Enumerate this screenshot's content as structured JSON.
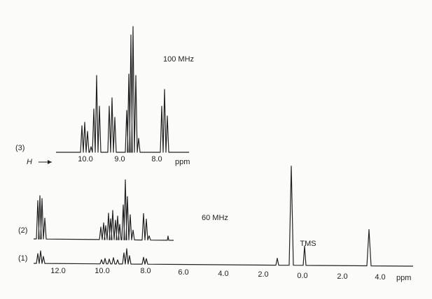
{
  "spectrum_3": {
    "label": "(3)",
    "frequency": "100 MHz",
    "field_symbol": "H",
    "axis": {
      "ticks": [
        "10.0",
        "9.0",
        "8.0"
      ],
      "unit": "ppm"
    }
  },
  "spectrum_2": {
    "label": "(2)",
    "frequency": "60 MHz"
  },
  "spectrum_1": {
    "label": "(1)",
    "reference": "TMS"
  },
  "axis": {
    "ticks": [
      "12.0",
      "10.0",
      "8.0",
      "6.0",
      "4.0",
      "2.0",
      "0.0",
      "2.0",
      "4.0"
    ],
    "unit": "ppm"
  }
}
